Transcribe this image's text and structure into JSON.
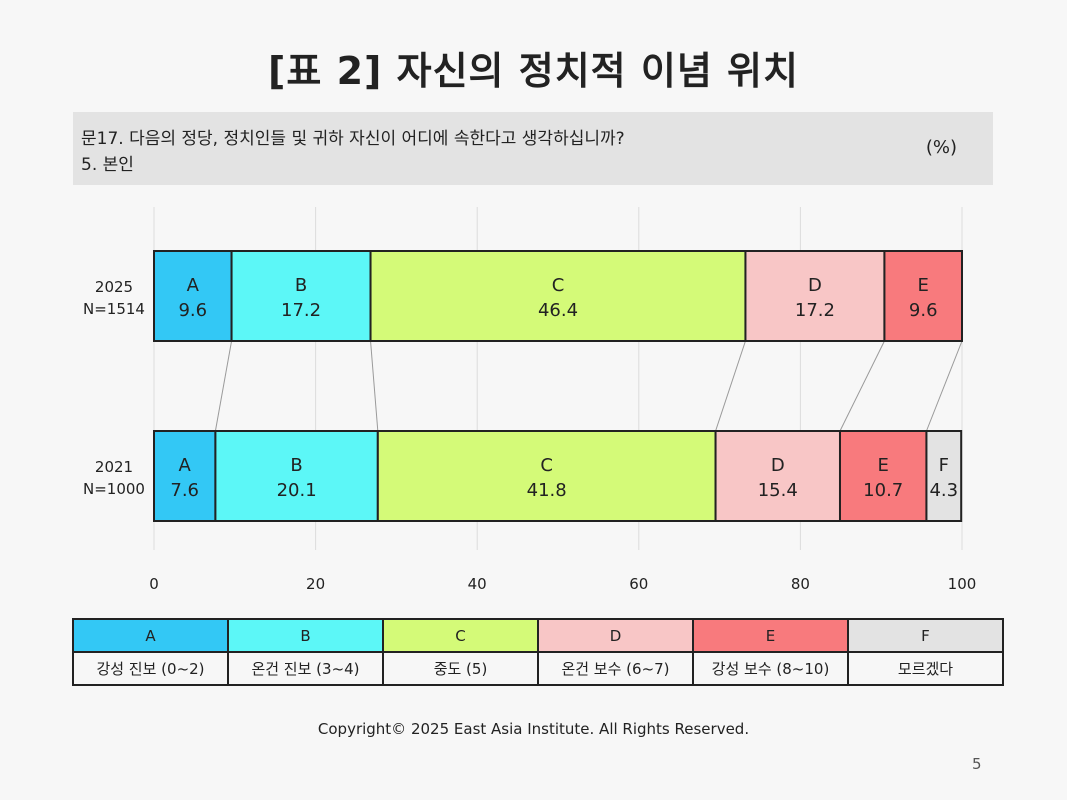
{
  "title": "[표 2] 자신의 정치적 이념 위치",
  "question": {
    "line1": "문17. 다음의 정당, 정치인들 및 귀하 자신이 어디에 속한다고 생각하십니까?",
    "line2": "5. 본인",
    "unit": "(%)"
  },
  "chart_data": {
    "type": "bar",
    "orientation": "horizontal",
    "stacked": true,
    "categories": [
      {
        "year": "2025",
        "n": "N=1514"
      },
      {
        "year": "2021",
        "n": "N=1000"
      }
    ],
    "series": [
      {
        "name": "A",
        "color": "#33c8f5",
        "values": [
          9.6,
          7.6
        ]
      },
      {
        "name": "B",
        "color": "#5cf7f7",
        "values": [
          17.2,
          20.1
        ]
      },
      {
        "name": "C",
        "color": "#d4fa78",
        "values": [
          46.4,
          41.8
        ]
      },
      {
        "name": "D",
        "color": "#f8c6c6",
        "values": [
          17.2,
          15.4
        ]
      },
      {
        "name": "E",
        "color": "#f87a7d",
        "values": [
          9.6,
          10.7
        ]
      },
      {
        "name": "F",
        "color": "#e3e3e3",
        "values": [
          null,
          4.3
        ]
      }
    ],
    "xlim": [
      0,
      100
    ],
    "xticks": [
      "0",
      "20",
      "40",
      "60",
      "80",
      "100"
    ],
    "grid": true,
    "connector_lines": true
  },
  "legend": {
    "codes": [
      "A",
      "B",
      "C",
      "D",
      "E",
      "F"
    ],
    "colors": [
      "#33c8f5",
      "#5cf7f7",
      "#d4fa78",
      "#f8c6c6",
      "#f87a7d",
      "#e3e3e3"
    ],
    "labels": [
      "강성 진보 (0~2)",
      "온건 진보 (3~4)",
      "중도 (5)",
      "온건 보수 (6~7)",
      "강성 보수 (8~10)",
      "모르겠다"
    ]
  },
  "footer": {
    "copyright": "Copyright© 2025 East Asia Institute. All Rights Reserved.",
    "page_number": "5"
  }
}
